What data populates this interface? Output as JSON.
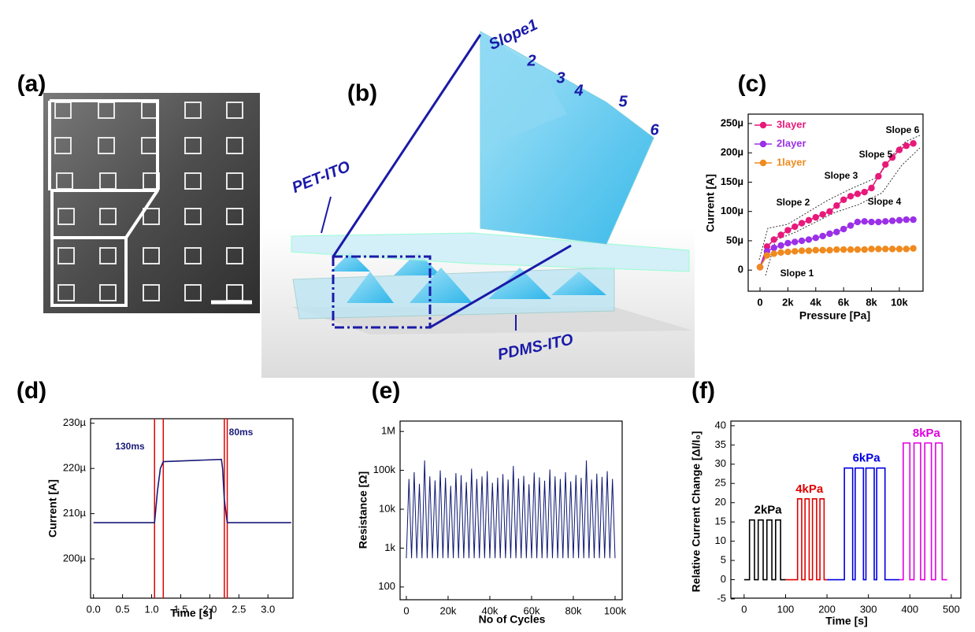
{
  "figure": {
    "panel_labels": [
      "(a)",
      "(b)",
      "(c)",
      "(d)",
      "(e)",
      "(f)"
    ],
    "diagram_labels": [
      "Slope1",
      "2",
      "3",
      "4",
      "5",
      "6",
      "PET-ITO",
      "PDMS-ITO"
    ]
  },
  "chart_data": [
    {
      "type": "line",
      "xlabel": "Pressure [Pa]",
      "ylabel": "Current [A]",
      "xlim": [
        -850,
        11700
      ],
      "ylim": [
        -3.6e-05,
        0.000266
      ],
      "xticks": [
        0,
        {
          "value": 2000,
          "label": "2k"
        },
        {
          "value": 4000,
          "label": "4k"
        },
        {
          "value": 6000,
          "label": "6k"
        },
        {
          "value": 8000,
          "label": "8k"
        },
        {
          "value": 10000,
          "label": "10k"
        }
      ],
      "yticks": [
        0,
        {
          "value": 5e-05,
          "label": "50µ"
        },
        {
          "value": 0.0001,
          "label": "100µ"
        },
        {
          "value": 0.00015,
          "label": "150µ"
        },
        {
          "value": 0.0002,
          "label": "200µ"
        },
        {
          "value": 0.00025,
          "label": "250µ"
        }
      ],
      "markers": true,
      "legend": "upper left",
      "x": [
        0,
        500,
        1000,
        1500,
        2000,
        2500,
        3000,
        3500,
        4000,
        4500,
        5000,
        5500,
        6000,
        6500,
        7000,
        7500,
        8000,
        8500,
        9000,
        9500,
        10000,
        10500,
        11000
      ],
      "series": [
        {
          "name": "3layer",
          "color": "#e8197a",
          "values": [
            5e-06,
            4e-05,
            5.2e-05,
            6e-05,
            6.8e-05,
            7.4e-05,
            8e-05,
            8.5e-05,
            9e-05,
            9.5e-05,
            0.0001,
            0.00011,
            0.00012,
            0.000126,
            0.00013,
            0.000133,
            0.00014,
            0.00016,
            0.00018,
            0.000192,
            0.000205,
            0.000212,
            0.000216
          ]
        },
        {
          "name": "2layer",
          "color": "#9b30e8",
          "values": [
            5e-06,
            3.2e-05,
            3.8e-05,
            4.2e-05,
            4.6e-05,
            4.8e-05,
            5e-05,
            5.2e-05,
            5.5e-05,
            5.8e-05,
            6.2e-05,
            6.5e-05,
            7e-05,
            7.6e-05,
            8.2e-05,
            8.3e-05,
            8.2e-05,
            8.2e-05,
            8.3e-05,
            8.4e-05,
            8.5e-05,
            8.6e-05,
            8.6e-05
          ]
        },
        {
          "name": "1layer",
          "color": "#f08a1e",
          "values": [
            5e-06,
            2.5e-05,
            2.8e-05,
            3e-05,
            3.1e-05,
            3.2e-05,
            3.3e-05,
            3.3e-05,
            3.4e-05,
            3.4e-05,
            3.4e-05,
            3.5e-05,
            3.5e-05,
            3.5e-05,
            3.5e-05,
            3.5e-05,
            3.6e-05,
            3.6e-05,
            3.6e-05,
            3.6e-05,
            3.6e-05,
            3.6e-05,
            3.7e-05
          ]
        }
      ],
      "annotations": [
        "Slope 1",
        "Slope 2",
        "Slope 3",
        "Slope 4",
        "Slope 5",
        "Slope 6"
      ]
    },
    {
      "type": "line",
      "xlabel": "Time [s]",
      "ylabel": "Current [A]",
      "xlim": [
        -0.05,
        3.43
      ],
      "ylim": [
        0.0001913,
        0.000231
      ],
      "xticks": [
        {
          "value": 0,
          "label": "0.0"
        },
        0.5,
        {
          "value": 1,
          "label": "1.0"
        },
        1.5,
        {
          "value": 2,
          "label": "2.0"
        },
        2.5,
        {
          "value": 3,
          "label": "3.0"
        }
      ],
      "yticks": [
        {
          "value": 0.0002,
          "label": "200µ"
        },
        {
          "value": 0.00021,
          "label": "210µ"
        },
        {
          "value": 0.00022,
          "label": "220µ"
        },
        {
          "value": 0.00023,
          "label": "230µ"
        }
      ],
      "x": [
        0,
        1.05,
        1.1,
        1.15,
        1.2,
        2.2,
        2.22,
        2.25,
        2.3,
        3.4
      ],
      "series": [
        {
          "color": "#1a1a7a",
          "values": [
            0.000208,
            0.000208,
            0.000215,
            0.00022,
            0.0002215,
            0.000222,
            0.00022,
            0.000213,
            0.000208,
            0.000208
          ]
        }
      ],
      "vlines": [
        1.05,
        1.2,
        2.25,
        2.3
      ],
      "vline_color": "#e00000",
      "annotations": [
        "130ms",
        "80ms"
      ]
    },
    {
      "type": "line",
      "xlabel": "No of Cycles",
      "ylabel": "Resistance [Ω]",
      "log_y": true,
      "xlim": [
        -3000,
        103400
      ],
      "ylim": [
        47,
        1850000
      ],
      "xticks": [
        0,
        {
          "value": 20000,
          "label": "20k"
        },
        {
          "value": 40000,
          "label": "40k"
        },
        {
          "value": 60000,
          "label": "60k"
        },
        {
          "value": 80000,
          "label": "80k"
        },
        {
          "value": 100000,
          "label": "100k"
        }
      ],
      "yticks": [
        100,
        {
          "value": 1000,
          "label": "1k"
        },
        {
          "value": 10000,
          "label": "10k"
        },
        {
          "value": 100000,
          "label": "100k"
        },
        {
          "value": 1000000,
          "label": "1M"
        }
      ],
      "x": [
        0,
        1250,
        2500,
        3750,
        5000,
        6250,
        7500,
        8750,
        10000,
        11250,
        12500,
        13750,
        15000,
        16250,
        17500,
        18750,
        20000,
        21250,
        22500,
        23750,
        25000,
        26250,
        27500,
        28750,
        30000,
        31250,
        32500,
        33750,
        35000,
        36250,
        37500,
        38750,
        40000,
        41250,
        42500,
        43750,
        45000,
        46250,
        47500,
        48750,
        50000,
        51250,
        52500,
        53750,
        55000,
        56250,
        57500,
        58750,
        60000,
        61250,
        62500,
        63750,
        65000,
        66250,
        67500,
        68750,
        70000,
        71250,
        72500,
        73750,
        75000,
        76250,
        77500,
        78750,
        80000,
        81250,
        82500,
        83750,
        85000,
        86250,
        87500,
        88750,
        90000,
        91250,
        92500,
        93750,
        95000,
        96250,
        97500,
        98750,
        100000
      ],
      "series": [
        {
          "color": "#0d1670",
          "values": [
            550,
            60000,
            550,
            90000,
            550,
            45000,
            550,
            180000,
            550,
            70000,
            550,
            55000,
            550,
            100000,
            550,
            65000,
            550,
            40000,
            550,
            85000,
            550,
            75000,
            550,
            50000,
            550,
            110000,
            550,
            60000,
            550,
            70000,
            550,
            95000,
            550,
            48000,
            550,
            65000,
            550,
            80000,
            550,
            58000,
            550,
            130000,
            550,
            62000,
            550,
            72000,
            550,
            44000,
            550,
            88000,
            550,
            66000,
            550,
            54000,
            550,
            105000,
            550,
            70000,
            550,
            60000,
            550,
            90000,
            550,
            52000,
            550,
            76000,
            550,
            64000,
            550,
            180000,
            550,
            58000,
            550,
            82000,
            550,
            68000,
            550,
            95000,
            550,
            60000,
            550
          ]
        }
      ]
    },
    {
      "type": "line",
      "xlabel": "Time [s]",
      "ylabel": "Relative Current Change [ΔI/I₀]",
      "xlim": [
        -32,
        523
      ],
      "ylim": [
        -4.8,
        41.2
      ],
      "xticks": [
        0,
        100,
        200,
        300,
        400,
        500
      ],
      "yticks": [
        -5,
        0,
        5,
        10,
        15,
        20,
        25,
        30,
        35,
        40
      ],
      "series_labels": true,
      "series": [
        {
          "name": "2kPa",
          "color": "#000000",
          "x": [
            0,
            13,
            13,
            25,
            25,
            34,
            34,
            46,
            46,
            55,
            55,
            67,
            67,
            76,
            76,
            88,
            88,
            100
          ],
          "values": [
            0,
            0,
            15.5,
            15.5,
            0,
            0,
            15.5,
            15.5,
            0,
            0,
            15.5,
            15.5,
            0,
            0,
            15.5,
            15.5,
            0,
            0
          ]
        },
        {
          "name": "4kPa",
          "color": "#e00000",
          "x": [
            100,
            129,
            129,
            139,
            139,
            147,
            147,
            157,
            157,
            165,
            165,
            175,
            175,
            183,
            183,
            193,
            193,
            200
          ],
          "values": [
            0,
            0,
            21,
            21,
            0,
            0,
            21,
            21,
            0,
            0,
            21,
            21,
            0,
            0,
            21,
            21,
            0,
            0
          ]
        },
        {
          "name": "6kPa",
          "color": "#0000e0",
          "x": [
            200,
            242,
            242,
            262,
            262,
            268,
            268,
            288,
            288,
            294,
            294,
            314,
            314,
            320,
            320,
            340,
            340,
            375
          ],
          "values": [
            0,
            0,
            29,
            29,
            0,
            0,
            29,
            29,
            0,
            0,
            29,
            29,
            0,
            0,
            29,
            29,
            0,
            0
          ]
        },
        {
          "name": "8kPa",
          "color": "#e000e0",
          "x": [
            375,
            384,
            384,
            400,
            400,
            410,
            410,
            426,
            426,
            436,
            436,
            452,
            452,
            462,
            462,
            478,
            478,
            490
          ],
          "values": [
            0,
            0,
            35.5,
            35.5,
            0,
            0,
            35.5,
            35.5,
            0,
            0,
            35.5,
            35.5,
            0,
            0,
            35.5,
            35.5,
            0,
            0
          ]
        }
      ]
    }
  ]
}
